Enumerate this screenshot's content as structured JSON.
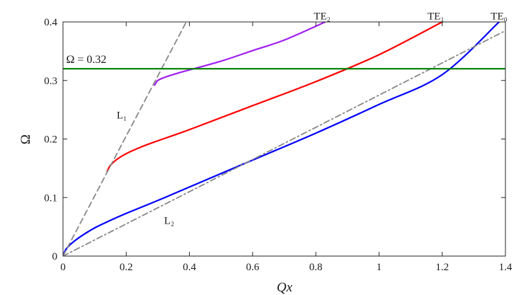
{
  "chart_data": {
    "type": "line",
    "xlabel": "Qx",
    "ylabel": "Ω",
    "xlim": [
      0,
      1.4
    ],
    "ylim": [
      0,
      0.4
    ],
    "x_ticks": [
      "0",
      "0.2",
      "0.4",
      "0.6",
      "0.8",
      "1",
      "1.2",
      "1.4"
    ],
    "y_ticks": [
      "0",
      "0.1",
      "0.2",
      "0.3",
      "0.4"
    ],
    "grid": false,
    "series": [
      {
        "name": "TE₀",
        "color": "#0000ff",
        "style": "solid",
        "points": [
          [
            0,
            0
          ],
          [
            0.01,
            0.012
          ],
          [
            0.03,
            0.023
          ],
          [
            0.06,
            0.035
          ],
          [
            0.1,
            0.048
          ],
          [
            0.15,
            0.061
          ],
          [
            0.2,
            0.073
          ],
          [
            0.3,
            0.095
          ],
          [
            0.4,
            0.118
          ],
          [
            0.6,
            0.164
          ],
          [
            0.8,
            0.21
          ],
          [
            1.0,
            0.259
          ],
          [
            1.2,
            0.31
          ],
          [
            1.38,
            0.4
          ]
        ]
      },
      {
        "name": "TE₁",
        "color": "#ff0000",
        "style": "solid",
        "points": [
          [
            0.14,
            0.145
          ],
          [
            0.15,
            0.155
          ],
          [
            0.17,
            0.165
          ],
          [
            0.2,
            0.175
          ],
          [
            0.25,
            0.187
          ],
          [
            0.3,
            0.197
          ],
          [
            0.4,
            0.216
          ],
          [
            0.6,
            0.257
          ],
          [
            0.8,
            0.298
          ],
          [
            1.0,
            0.344
          ],
          [
            1.2,
            0.4
          ]
        ]
      },
      {
        "name": "TE₂",
        "color": "#a020f0",
        "style": "solid",
        "points": [
          [
            0.29,
            0.292
          ],
          [
            0.3,
            0.3
          ],
          [
            0.32,
            0.305
          ],
          [
            0.36,
            0.312
          ],
          [
            0.4,
            0.318
          ],
          [
            0.5,
            0.333
          ],
          [
            0.6,
            0.351
          ],
          [
            0.7,
            0.369
          ],
          [
            0.83,
            0.4
          ]
        ]
      },
      {
        "name": "L₁",
        "color": "#888888",
        "style": "dashed",
        "points": [
          [
            0,
            0
          ],
          [
            0.39,
            0.4
          ]
        ]
      },
      {
        "name": "L₂",
        "color": "#888888",
        "style": "dashdot",
        "points": [
          [
            0,
            0
          ],
          [
            1.4,
            0.385
          ]
        ]
      },
      {
        "name": "Ω = 0.32",
        "color": "#008000",
        "style": "solid",
        "points": [
          [
            0,
            0.32
          ],
          [
            1.4,
            0.32
          ]
        ]
      }
    ],
    "labels": [
      {
        "text": "TE₂",
        "x": 0.82,
        "y": 0.404
      },
      {
        "text": "TE₁",
        "x": 1.18,
        "y": 0.404
      },
      {
        "text": "TE₀",
        "x": 1.38,
        "y": 0.404
      },
      {
        "text": "Ω = 0.32",
        "x": 0.01,
        "y": 0.33
      },
      {
        "text": "L₁",
        "x": 0.17,
        "y": 0.235
      },
      {
        "text": "L₂",
        "x": 0.32,
        "y": 0.055
      }
    ]
  }
}
